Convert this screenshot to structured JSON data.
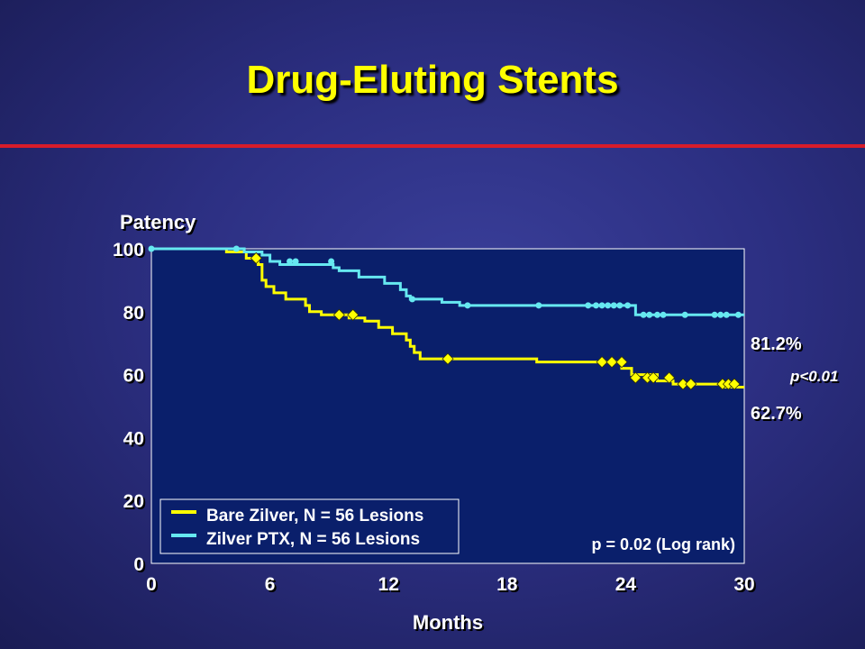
{
  "slide": {
    "title": "Drug-Eluting Stents"
  },
  "colors": {
    "accent": "#ffff00",
    "divider": "#d81c2a",
    "plot_bg": "#0a1f6b",
    "bare": "#ffff00",
    "ptx": "#66e8f0"
  },
  "chart_data": {
    "type": "line",
    "step": true,
    "title": "",
    "xlabel": "Months",
    "ylabel": "Patency",
    "xlim": [
      0,
      30
    ],
    "ylim": [
      0,
      100
    ],
    "xticks": [
      0,
      6,
      12,
      18,
      24,
      30
    ],
    "yticks": [
      0,
      20,
      40,
      60,
      80,
      100
    ],
    "grid": false,
    "legend_position": "bottom-left",
    "series": [
      {
        "name": "Bare Zilver, N = 56 Lesions",
        "color": "#ffff00",
        "marker": "diamond",
        "steps": [
          [
            0,
            100
          ],
          [
            3.8,
            99
          ],
          [
            4.8,
            97
          ],
          [
            5.4,
            95
          ],
          [
            5.6,
            90
          ],
          [
            5.8,
            88
          ],
          [
            6.2,
            86
          ],
          [
            6.8,
            84
          ],
          [
            7.8,
            82
          ],
          [
            8.0,
            80
          ],
          [
            8.6,
            79
          ],
          [
            10.0,
            78
          ],
          [
            10.8,
            77
          ],
          [
            11.5,
            75
          ],
          [
            12.2,
            73
          ],
          [
            12.9,
            71
          ],
          [
            13.1,
            69
          ],
          [
            13.3,
            67
          ],
          [
            13.6,
            65
          ],
          [
            19.5,
            64
          ],
          [
            23.8,
            62
          ],
          [
            24.3,
            60
          ],
          [
            25.6,
            58
          ],
          [
            26.4,
            57
          ],
          [
            29.0,
            56
          ],
          [
            30,
            56
          ]
        ],
        "censored": [
          [
            5.3,
            97
          ],
          [
            9.5,
            79
          ],
          [
            10.2,
            79
          ],
          [
            15.0,
            65
          ],
          [
            22.8,
            64
          ],
          [
            23.3,
            64
          ],
          [
            23.8,
            64
          ],
          [
            24.5,
            59
          ],
          [
            25.1,
            59
          ],
          [
            25.4,
            59
          ],
          [
            26.2,
            59
          ],
          [
            26.9,
            57
          ],
          [
            27.3,
            57
          ],
          [
            28.9,
            57
          ],
          [
            29.2,
            57
          ],
          [
            29.5,
            57
          ]
        ]
      },
      {
        "name": "Zilver PTX, N = 56 Lesions",
        "color": "#66e8f0",
        "marker": "circle",
        "steps": [
          [
            0,
            100
          ],
          [
            4.7,
            99
          ],
          [
            5.6,
            98
          ],
          [
            6.0,
            96
          ],
          [
            6.5,
            95
          ],
          [
            9.2,
            94
          ],
          [
            9.5,
            93
          ],
          [
            10.5,
            91
          ],
          [
            11.8,
            89
          ],
          [
            12.6,
            87
          ],
          [
            12.9,
            85
          ],
          [
            13.1,
            84
          ],
          [
            14.7,
            83
          ],
          [
            15.6,
            82
          ],
          [
            24.5,
            79
          ],
          [
            30,
            79
          ]
        ],
        "censored": [
          [
            0,
            100
          ],
          [
            4.3,
            100
          ],
          [
            7.0,
            96
          ],
          [
            7.3,
            96
          ],
          [
            9.1,
            96
          ],
          [
            13.2,
            84
          ],
          [
            16.0,
            82
          ],
          [
            19.6,
            82
          ],
          [
            22.1,
            82
          ],
          [
            22.5,
            82
          ],
          [
            22.8,
            82
          ],
          [
            23.1,
            82
          ],
          [
            23.4,
            82
          ],
          [
            23.7,
            82
          ],
          [
            24.1,
            82
          ],
          [
            24.9,
            79
          ],
          [
            25.2,
            79
          ],
          [
            25.6,
            79
          ],
          [
            25.9,
            79
          ],
          [
            27.0,
            79
          ],
          [
            28.5,
            79
          ],
          [
            28.8,
            79
          ],
          [
            29.1,
            79
          ],
          [
            29.7,
            79
          ]
        ]
      }
    ],
    "annotations": {
      "ptx_final": "81.2%",
      "bare_final": "62.7%",
      "pvalue": "p<0.01",
      "logrank": "p = 0.02 (Log rank)"
    }
  }
}
